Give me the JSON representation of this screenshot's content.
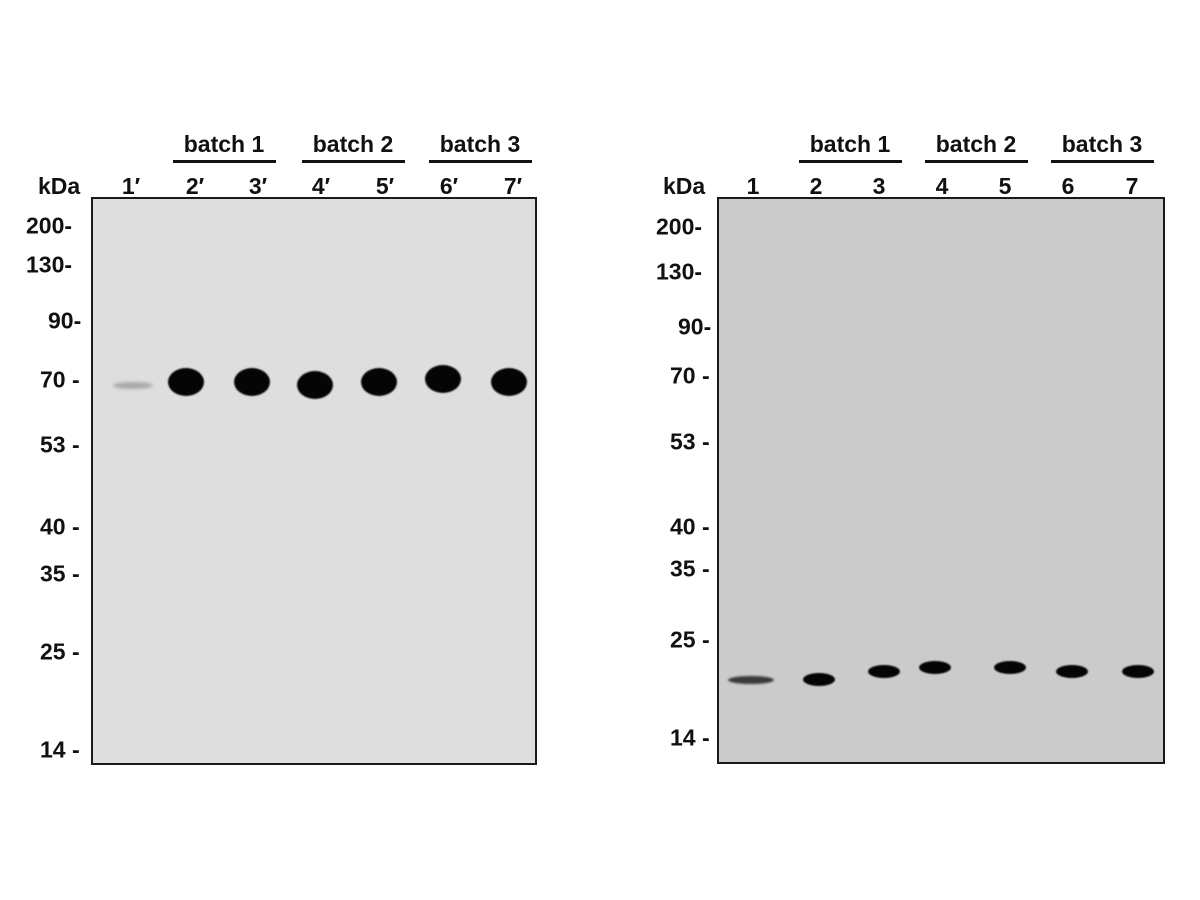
{
  "colors": {
    "blot_left": "#dedede",
    "blot_right": "#cbcbcb",
    "band": "#050505",
    "faint_band": "#a9a9a9"
  },
  "panels": [
    {
      "unit_label": "kDa",
      "lanes": [
        "1′",
        "2′",
        "3′",
        "4′",
        "5′",
        "6′",
        "7′"
      ],
      "batches": [
        {
          "label": "batch 1",
          "lanes": [
            2,
            3
          ]
        },
        {
          "label": "batch 2",
          "lanes": [
            4,
            5
          ]
        },
        {
          "label": "batch 3",
          "lanes": [
            6,
            7
          ]
        }
      ],
      "markers": [
        "200",
        "130",
        "90",
        "70",
        "53",
        "40",
        "35",
        "25",
        "14"
      ],
      "bands": [
        {
          "lane": 1,
          "kda": 69,
          "intensity": "faint"
        },
        {
          "lane": 2,
          "kda": 70,
          "intensity": "strong"
        },
        {
          "lane": 3,
          "kda": 70,
          "intensity": "strong"
        },
        {
          "lane": 4,
          "kda": 69,
          "intensity": "strong"
        },
        {
          "lane": 5,
          "kda": 70,
          "intensity": "strong"
        },
        {
          "lane": 6,
          "kda": 71,
          "intensity": "strong"
        },
        {
          "lane": 7,
          "kda": 70,
          "intensity": "strong"
        }
      ]
    },
    {
      "unit_label": "kDa",
      "lanes": [
        "1",
        "2",
        "3",
        "4",
        "5",
        "6",
        "7"
      ],
      "batches": [
        {
          "label": "batch 1",
          "lanes": [
            2,
            3
          ]
        },
        {
          "label": "batch 2",
          "lanes": [
            4,
            5
          ]
        },
        {
          "label": "batch 3",
          "lanes": [
            6,
            7
          ]
        }
      ],
      "markers": [
        "200",
        "130",
        "90",
        "70",
        "53",
        "40",
        "35",
        "25",
        "14"
      ],
      "bands": [
        {
          "lane": 1,
          "kda": 20,
          "intensity": "medium"
        },
        {
          "lane": 2,
          "kda": 20,
          "intensity": "strong"
        },
        {
          "lane": 3,
          "kda": 21,
          "intensity": "strong"
        },
        {
          "lane": 4,
          "kda": 21.5,
          "intensity": "strong"
        },
        {
          "lane": 5,
          "kda": 21.5,
          "intensity": "strong"
        },
        {
          "lane": 6,
          "kda": 21,
          "intensity": "strong"
        },
        {
          "lane": 7,
          "kda": 21,
          "intensity": "strong"
        }
      ]
    }
  ]
}
